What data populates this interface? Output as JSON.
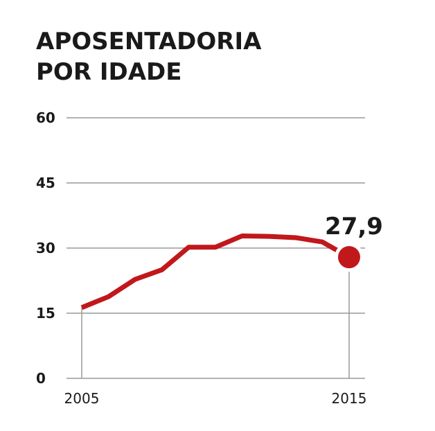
{
  "chart_data": {
    "type": "line",
    "title_lines": [
      "APOSENTADORIA",
      "POR IDADE"
    ],
    "x": [
      2005,
      2006,
      2007,
      2008,
      2009,
      2010,
      2011,
      2012,
      2013,
      2014,
      2015
    ],
    "x_tick_labels": [
      "2005",
      "2015"
    ],
    "series": [
      {
        "values": [
          16.3,
          18.8,
          22.8,
          25.0,
          30.2,
          30.2,
          32.8,
          32.7,
          32.4,
          31.4,
          27.9
        ],
        "color": "#c1181b"
      }
    ],
    "highlight": {
      "x": 2015,
      "y": 27.9,
      "label": "27,9"
    },
    "ylim": [
      0,
      60
    ],
    "y_ticks": [
      0,
      15,
      30,
      45,
      60
    ],
    "y_tick_labels": [
      "0",
      "15",
      "30",
      "45",
      "60"
    ],
    "grid": "horizontal",
    "colors": {
      "line": "#c1181b",
      "grid": "#999999",
      "text": "#1a1a1a"
    }
  }
}
